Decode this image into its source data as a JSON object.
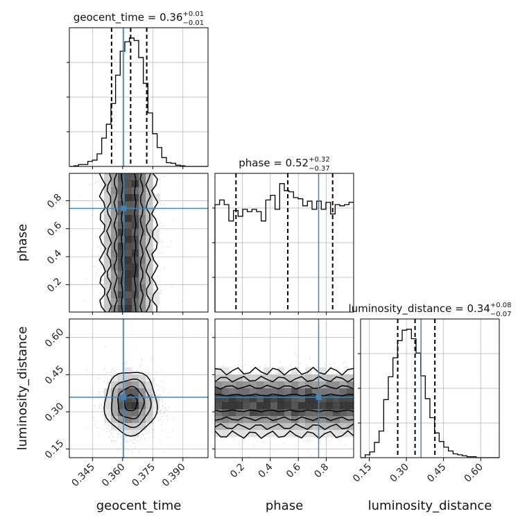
{
  "chart_data": {
    "type": "corner",
    "parameters": [
      "geocent_time",
      "phase",
      "luminosity_distance"
    ],
    "truths": [
      0.3605,
      0.745,
      0.359
    ],
    "colors": {
      "truth": "#4682b4",
      "hist": "#000000",
      "grid": "#b0b0b0",
      "density": "#404040"
    },
    "grid": true,
    "ranges": [
      [
        0.3335,
        0.4025
      ],
      [
        0.005,
        0.995
      ],
      [
        0.115,
        0.675
      ]
    ],
    "ticks": {
      "geocent_time": [
        0.345,
        0.36,
        0.375,
        0.39
      ],
      "phase": [
        0.2,
        0.4,
        0.6,
        0.8
      ],
      "luminosity_distance": [
        0.15,
        0.3,
        0.45,
        0.6
      ]
    },
    "tick_labels": {
      "geocent_time": [
        "0.345",
        "0.360",
        "0.375",
        "0.390"
      ],
      "phase": [
        "0.2",
        "0.4",
        "0.6",
        "0.8"
      ],
      "luminosity_distance": [
        "0.15",
        "0.30",
        "0.45",
        "0.60"
      ]
    },
    "titles": [
      {
        "name": "geocent_time",
        "prefix": "geocent_time = ",
        "median": "0.36",
        "plus": "+0.01",
        "minus": "−0.01"
      },
      {
        "name": "phase",
        "prefix": "phase = ",
        "median": "0.52",
        "plus": "+0.32",
        "minus": "−0.37"
      },
      {
        "name": "luminosity_distance",
        "prefix": "luminosity_distance = ",
        "median": "0.34",
        "plus": "+0.08",
        "minus": "−0.07"
      }
    ],
    "quantiles": {
      "geocent_time": [
        0.3545,
        0.364,
        0.372
      ],
      "phase": [
        0.155,
        0.525,
        0.845
      ],
      "luminosity_distance": [
        0.265,
        0.335,
        0.415
      ]
    },
    "histograms": {
      "geocent_time": {
        "edges": [
          0.3335,
          0.3358,
          0.3381,
          0.3404,
          0.3427,
          0.345,
          0.3473,
          0.3496,
          0.3519,
          0.3542,
          0.3565,
          0.3588,
          0.3611,
          0.3634,
          0.3657,
          0.368,
          0.3703,
          0.3726,
          0.3749,
          0.3772,
          0.3795,
          0.3818,
          0.3841,
          0.3864,
          0.3887,
          0.391,
          0.3933,
          0.3956,
          0.3979,
          0.4002,
          0.4025
        ],
        "counts": [
          0,
          1,
          3,
          3,
          8,
          10,
          20,
          45,
          67,
          100,
          145,
          183,
          198,
          204,
          200,
          173,
          132,
          85,
          52,
          30,
          14,
          6,
          5,
          2,
          1,
          0,
          0,
          0,
          0,
          0
        ]
      },
      "phase": {
        "edges": [
          0.005,
          0.038,
          0.071,
          0.104,
          0.137,
          0.17,
          0.203,
          0.236,
          0.269,
          0.302,
          0.335,
          0.368,
          0.401,
          0.434,
          0.467,
          0.5,
          0.533,
          0.566,
          0.599,
          0.632,
          0.665,
          0.698,
          0.731,
          0.764,
          0.797,
          0.83,
          0.863,
          0.896,
          0.929,
          0.962,
          0.995
        ],
        "counts": [
          92,
          96,
          92,
          78,
          87,
          82,
          88,
          86,
          88,
          86,
          78,
          96,
          100,
          88,
          110,
          104,
          103,
          98,
          97,
          91,
          95,
          88,
          95,
          88,
          94,
          84,
          92,
          91,
          92,
          94
        ]
      },
      "luminosity_distance": {
        "edges": [
          0.115,
          0.1337,
          0.1523,
          0.171,
          0.1897,
          0.2083,
          0.227,
          0.2457,
          0.2643,
          0.283,
          0.3017,
          0.3203,
          0.339,
          0.3577,
          0.3763,
          0.395,
          0.4137,
          0.4323,
          0.451,
          0.4697,
          0.4883,
          0.507,
          0.5257,
          0.5443,
          0.563,
          0.5817,
          0.6003,
          0.619,
          0.6377,
          0.6563,
          0.675
        ],
        "counts": [
          0,
          3,
          6,
          16,
          28,
          61,
          85,
          105,
          123,
          134,
          135,
          125,
          110,
          86,
          62,
          42,
          26,
          17,
          11,
          7,
          4,
          3,
          2,
          1,
          1,
          0,
          0,
          0,
          0,
          0
        ]
      }
    },
    "pairs": [
      {
        "x": "geocent_time",
        "y": "phase",
        "mean": [
          0.363,
          0.5
        ],
        "std": [
          0.0065,
          0.27
        ],
        "shape": "band-vertical"
      },
      {
        "x": "geocent_time",
        "y": "luminosity_distance",
        "mean": [
          0.364,
          0.336
        ],
        "std": [
          0.0065,
          0.064
        ],
        "shape": "blob"
      },
      {
        "x": "phase",
        "y": "luminosity_distance",
        "mean": [
          0.5,
          0.336
        ],
        "std": [
          0.27,
          0.064
        ],
        "shape": "band-horizontal"
      }
    ]
  }
}
